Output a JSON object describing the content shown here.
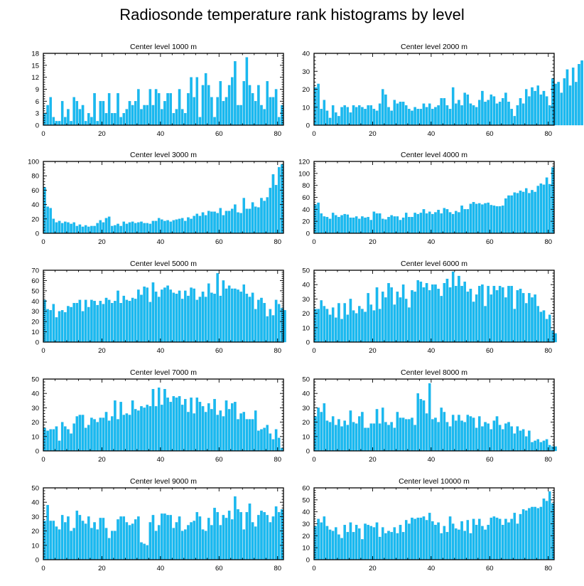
{
  "page": {
    "title": "Radiosonde temperature rank histograms by level"
  },
  "colors": {
    "bar": "#19b9f0",
    "bar_edge": "#0aa6de",
    "axis": "#000000"
  },
  "chart_data": [
    {
      "type": "bar",
      "title": "Center level 1000 m",
      "xlim": [
        0,
        82
      ],
      "ylim": [
        0,
        18
      ],
      "xticks": [
        0,
        20,
        40,
        60,
        80
      ],
      "yticks": [
        0,
        3,
        6,
        9,
        12,
        15,
        18
      ],
      "values": [
        3,
        5,
        7,
        2,
        1,
        1,
        6,
        2,
        4,
        1,
        7,
        6,
        4,
        5,
        1,
        3,
        2,
        8,
        1,
        6,
        6,
        3,
        8,
        3,
        3,
        8,
        2,
        3,
        4,
        6,
        5,
        6,
        9,
        4,
        5,
        5,
        9,
        5,
        9,
        8,
        4,
        6,
        8,
        8,
        3,
        4,
        9,
        4,
        3,
        8,
        12,
        7,
        12,
        2,
        10,
        13,
        10,
        7,
        2,
        7,
        11,
        6,
        7,
        10,
        12,
        16,
        5,
        5,
        11,
        17,
        10,
        8,
        6,
        10,
        5,
        4,
        11,
        7,
        7,
        9,
        2,
        5
      ]
    },
    {
      "type": "bar",
      "title": "Center level 2000 m",
      "xlim": [
        0,
        82
      ],
      "ylim": [
        0,
        40
      ],
      "xticks": [
        0,
        20,
        40,
        60,
        80
      ],
      "yticks": [
        0,
        10,
        20,
        30,
        40
      ],
      "values": [
        21,
        23,
        9,
        14,
        8,
        4,
        11,
        7,
        5,
        10,
        11,
        10,
        7,
        11,
        10,
        11,
        10,
        9,
        11,
        11,
        9,
        8,
        12,
        20,
        17,
        10,
        8,
        14,
        12,
        13,
        13,
        11,
        9,
        8,
        10,
        9,
        9,
        12,
        10,
        12,
        9,
        10,
        11,
        15,
        15,
        11,
        9,
        21,
        12,
        14,
        11,
        18,
        17,
        12,
        11,
        10,
        14,
        19,
        13,
        14,
        17,
        16,
        12,
        13,
        15,
        18,
        13,
        9,
        5,
        11,
        15,
        12,
        20,
        16,
        21,
        19,
        22,
        17,
        19,
        16,
        11,
        26,
        23,
        24,
        18,
        26,
        31,
        22,
        32,
        24,
        34,
        36
      ]
    },
    {
      "type": "bar",
      "title": "Center level 3000 m",
      "xlim": [
        0,
        82
      ],
      "ylim": [
        0,
        100
      ],
      "xticks": [
        0,
        20,
        40,
        60,
        80
      ],
      "yticks": [
        0,
        20,
        40,
        60,
        80,
        100
      ],
      "values": [
        64,
        37,
        35,
        20,
        15,
        17,
        14,
        16,
        15,
        13,
        15,
        10,
        12,
        9,
        11,
        9,
        10,
        10,
        14,
        18,
        15,
        21,
        23,
        10,
        11,
        13,
        10,
        16,
        13,
        15,
        16,
        14,
        15,
        16,
        14,
        14,
        13,
        17,
        17,
        21,
        19,
        17,
        18,
        16,
        18,
        19,
        20,
        21,
        17,
        22,
        20,
        24,
        27,
        24,
        29,
        25,
        31,
        30,
        30,
        28,
        35,
        25,
        31,
        31,
        34,
        40,
        29,
        28,
        49,
        34,
        34,
        43,
        37,
        36,
        49,
        45,
        50,
        63,
        82,
        67,
        92,
        96
      ]
    },
    {
      "type": "bar",
      "title": "Center level 4000 m",
      "xlim": [
        0,
        82
      ],
      "ylim": [
        0,
        120
      ],
      "xticks": [
        0,
        20,
        40,
        60,
        80
      ],
      "yticks": [
        0,
        20,
        40,
        60,
        80,
        100,
        120
      ],
      "values": [
        48,
        51,
        33,
        28,
        27,
        24,
        34,
        30,
        27,
        30,
        32,
        31,
        26,
        26,
        28,
        24,
        28,
        26,
        27,
        22,
        36,
        33,
        33,
        24,
        23,
        27,
        30,
        28,
        28,
        22,
        26,
        34,
        27,
        27,
        34,
        32,
        34,
        40,
        33,
        36,
        32,
        35,
        39,
        33,
        42,
        40,
        35,
        32,
        37,
        35,
        46,
        40,
        40,
        49,
        52,
        49,
        50,
        48,
        50,
        51,
        47,
        46,
        45,
        45,
        46,
        58,
        63,
        63,
        68,
        67,
        71,
        69,
        75,
        67,
        72,
        69,
        79,
        83,
        81,
        93,
        82,
        110
      ]
    },
    {
      "type": "bar",
      "title": "Center level 5000 m",
      "xlim": [
        0,
        82
      ],
      "ylim": [
        0,
        70
      ],
      "xticks": [
        0,
        20,
        40,
        60,
        80
      ],
      "yticks": [
        0,
        10,
        20,
        30,
        40,
        50,
        60,
        70
      ],
      "values": [
        41,
        32,
        31,
        37,
        24,
        30,
        31,
        29,
        35,
        34,
        38,
        38,
        41,
        30,
        41,
        34,
        41,
        40,
        36,
        40,
        37,
        43,
        41,
        38,
        40,
        50,
        38,
        45,
        41,
        40,
        43,
        42,
        51,
        46,
        54,
        53,
        39,
        58,
        49,
        44,
        51,
        53,
        55,
        51,
        48,
        47,
        50,
        42,
        50,
        45,
        53,
        52,
        41,
        44,
        49,
        44,
        57,
        48,
        47,
        67,
        45,
        60,
        52,
        55,
        52,
        52,
        51,
        49,
        56,
        47,
        44,
        48,
        32,
        41,
        43,
        38,
        25,
        32,
        26,
        41,
        37,
        33,
        31
      ]
    },
    {
      "type": "bar",
      "title": "Center level 6000 m",
      "xlim": [
        0,
        82
      ],
      "ylim": [
        0,
        50
      ],
      "xticks": [
        0,
        20,
        40,
        60,
        80
      ],
      "yticks": [
        0,
        10,
        20,
        30,
        40,
        50
      ],
      "values": [
        23,
        23,
        29,
        25,
        23,
        19,
        24,
        17,
        27,
        16,
        27,
        19,
        30,
        22,
        20,
        25,
        23,
        21,
        34,
        26,
        22,
        38,
        23,
        35,
        31,
        41,
        38,
        26,
        35,
        31,
        40,
        30,
        24,
        36,
        35,
        43,
        42,
        38,
        41,
        36,
        40,
        40,
        37,
        32,
        41,
        44,
        38,
        49,
        39,
        46,
        39,
        42,
        35,
        37,
        28,
        33,
        39,
        40,
        25,
        39,
        33,
        39,
        36,
        39,
        38,
        31,
        39,
        39,
        23,
        36,
        37,
        34,
        27,
        34,
        31,
        33,
        25,
        21,
        22,
        16,
        19,
        8,
        6
      ]
    },
    {
      "type": "bar",
      "title": "Center level 7000 m",
      "xlim": [
        0,
        82
      ],
      "ylim": [
        0,
        50
      ],
      "xticks": [
        0,
        20,
        40,
        60,
        80
      ],
      "yticks": [
        0,
        10,
        20,
        30,
        40,
        50
      ],
      "values": [
        16,
        14,
        15,
        15,
        17,
        7,
        20,
        17,
        15,
        12,
        19,
        24,
        25,
        25,
        16,
        18,
        23,
        22,
        20,
        23,
        23,
        27,
        21,
        24,
        35,
        22,
        34,
        25,
        26,
        25,
        35,
        29,
        28,
        31,
        30,
        32,
        31,
        43,
        31,
        44,
        32,
        43,
        37,
        34,
        38,
        37,
        38,
        32,
        36,
        27,
        37,
        26,
        37,
        34,
        31,
        27,
        33,
        29,
        36,
        25,
        28,
        24,
        35,
        29,
        33,
        34,
        22,
        26,
        27,
        22,
        22,
        22,
        28,
        14,
        15,
        16,
        18,
        12,
        8,
        15,
        9,
        2
      ]
    },
    {
      "type": "bar",
      "title": "Center level 8000 m",
      "xlim": [
        0,
        82
      ],
      "ylim": [
        0,
        50
      ],
      "xticks": [
        0,
        20,
        40,
        60,
        80
      ],
      "yticks": [
        0,
        10,
        20,
        30,
        40,
        50
      ],
      "values": [
        24,
        30,
        27,
        33,
        21,
        20,
        24,
        18,
        22,
        17,
        21,
        18,
        28,
        20,
        19,
        24,
        27,
        16,
        16,
        19,
        19,
        29,
        19,
        30,
        20,
        18,
        20,
        16,
        27,
        23,
        23,
        22,
        22,
        23,
        18,
        40,
        36,
        35,
        26,
        47,
        22,
        23,
        20,
        30,
        27,
        20,
        17,
        25,
        21,
        25,
        21,
        20,
        25,
        24,
        23,
        16,
        24,
        17,
        20,
        19,
        15,
        21,
        24,
        18,
        15,
        19,
        20,
        17,
        12,
        17,
        14,
        15,
        10,
        14,
        6,
        7,
        8,
        6,
        7,
        8,
        4,
        3,
        3
      ]
    },
    {
      "type": "bar",
      "title": "Center level 9000 m",
      "xlim": [
        0,
        82
      ],
      "ylim": [
        0,
        50
      ],
      "xticks": [
        0,
        20,
        40,
        60,
        80
      ],
      "yticks": [
        0,
        10,
        20,
        30,
        40,
        50
      ],
      "values": [
        27,
        38,
        27,
        27,
        23,
        21,
        31,
        26,
        30,
        20,
        22,
        34,
        31,
        27,
        25,
        30,
        22,
        26,
        21,
        29,
        29,
        22,
        15,
        20,
        20,
        28,
        30,
        30,
        26,
        24,
        25,
        28,
        30,
        12,
        11,
        10,
        26,
        31,
        20,
        24,
        32,
        32,
        31,
        31,
        22,
        26,
        30,
        20,
        21,
        24,
        26,
        27,
        33,
        30,
        21,
        20,
        29,
        24,
        36,
        33,
        24,
        31,
        29,
        34,
        28,
        44,
        35,
        33,
        21,
        33,
        39,
        26,
        23,
        31,
        34,
        33,
        31,
        26,
        30,
        37,
        33,
        35
      ]
    },
    {
      "type": "bar",
      "title": "Center level 10000 m",
      "xlim": [
        0,
        82
      ],
      "ylim": [
        0,
        60
      ],
      "xticks": [
        0,
        20,
        40,
        60,
        80
      ],
      "yticks": [
        0,
        10,
        20,
        30,
        40,
        50,
        60
      ],
      "values": [
        28,
        34,
        31,
        36,
        28,
        25,
        24,
        27,
        21,
        18,
        29,
        23,
        31,
        23,
        29,
        26,
        17,
        30,
        29,
        28,
        27,
        31,
        19,
        27,
        22,
        24,
        23,
        27,
        22,
        29,
        23,
        33,
        30,
        35,
        34,
        35,
        35,
        36,
        33,
        39,
        32,
        29,
        31,
        22,
        28,
        23,
        36,
        30,
        26,
        25,
        32,
        24,
        33,
        22,
        34,
        29,
        34,
        28,
        25,
        29,
        35,
        36,
        35,
        34,
        29,
        34,
        31,
        34,
        39,
        30,
        38,
        42,
        41,
        43,
        44,
        44,
        43,
        44,
        51,
        49,
        57,
        47
      ]
    }
  ]
}
